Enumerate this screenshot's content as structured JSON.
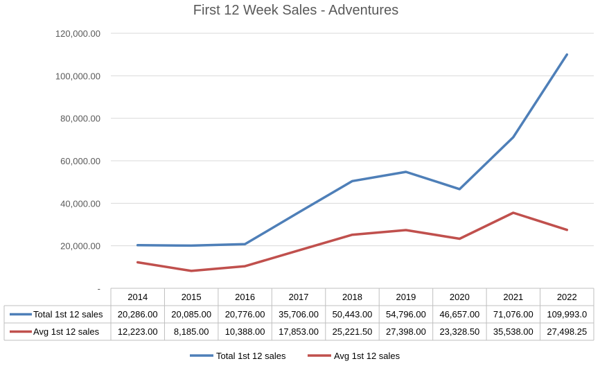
{
  "chart_data": {
    "type": "line",
    "title": "First 12 Week Sales - Adventures",
    "categories": [
      "2014",
      "2015",
      "2016",
      "2017",
      "2018",
      "2019",
      "2020",
      "2021",
      "2022"
    ],
    "ylim": [
      0,
      120000
    ],
    "yticks": [
      "-",
      "20,000.00",
      "40,000.00",
      "60,000.00",
      "80,000.00",
      "100,000.00",
      "120,000.00"
    ],
    "grid": true,
    "legend_position": "bottom",
    "data_table": true,
    "series": [
      {
        "name": "Total 1st 12 sales",
        "color": "#4e7fb8",
        "values": [
          20286,
          20085,
          20776,
          35706,
          50443,
          54796,
          46657,
          71076,
          109993
        ],
        "labels": [
          "20,286.00",
          "20,085.00",
          "20,776.00",
          "35,706.00",
          "50,443.00",
          "54,796.00",
          "46,657.00",
          "71,076.00",
          "109,993.0"
        ]
      },
      {
        "name": "Avg 1st 12 sales",
        "color": "#c0504d",
        "values": [
          12223,
          8185,
          10388,
          17853,
          25221.5,
          27398,
          23328.5,
          35538,
          27498.25
        ],
        "labels": [
          "12,223.00",
          "8,185.00",
          "10,388.00",
          "17,853.00",
          "25,221.50",
          "27,398.00",
          "23,328.50",
          "35,538.00",
          "27,498.25"
        ]
      }
    ]
  }
}
